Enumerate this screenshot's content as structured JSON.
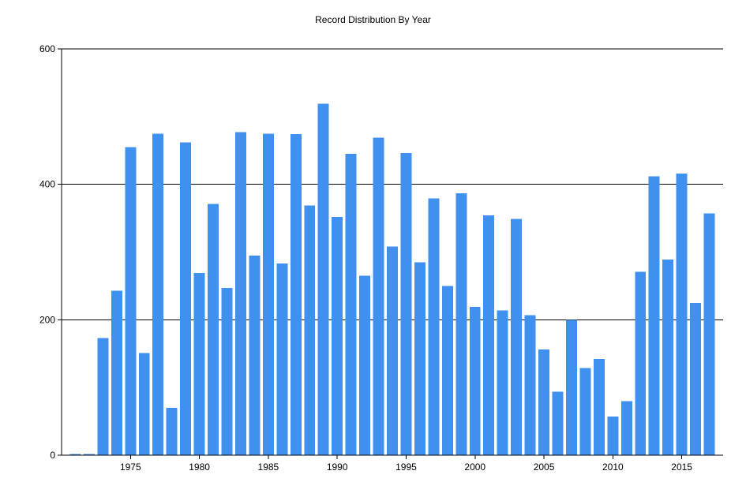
{
  "chart_data": {
    "type": "bar",
    "title": "Record Distribution By Year",
    "xlabel": "",
    "ylabel": "",
    "x": [
      1971,
      1972,
      1973,
      1974,
      1975,
      1976,
      1977,
      1978,
      1979,
      1980,
      1981,
      1982,
      1983,
      1984,
      1985,
      1986,
      1987,
      1988,
      1989,
      1990,
      1991,
      1992,
      1993,
      1994,
      1995,
      1996,
      1997,
      1998,
      1999,
      2000,
      2001,
      2002,
      2003,
      2004,
      2005,
      2006,
      2007,
      2008,
      2009,
      2010,
      2011,
      2012,
      2013,
      2014,
      2015,
      2016,
      2017
    ],
    "values": [
      2,
      2,
      173,
      243,
      455,
      151,
      475,
      70,
      462,
      269,
      371,
      247,
      477,
      295,
      475,
      283,
      474,
      369,
      519,
      352,
      445,
      265,
      469,
      308,
      446,
      285,
      379,
      250,
      387,
      219,
      354,
      214,
      349,
      207,
      156,
      94,
      200,
      129,
      142,
      57,
      80,
      271,
      412,
      289,
      416,
      225,
      357
    ],
    "ylim": [
      0,
      600
    ],
    "yticks": [
      0,
      200,
      400,
      600
    ],
    "xticks": [
      1975,
      1980,
      1985,
      1990,
      1995,
      2000,
      2005,
      2010,
      2015
    ],
    "xlim": [
      1970,
      2018
    ],
    "grid": true,
    "bar_color": "#4090f0",
    "axis_color": "#000000"
  }
}
